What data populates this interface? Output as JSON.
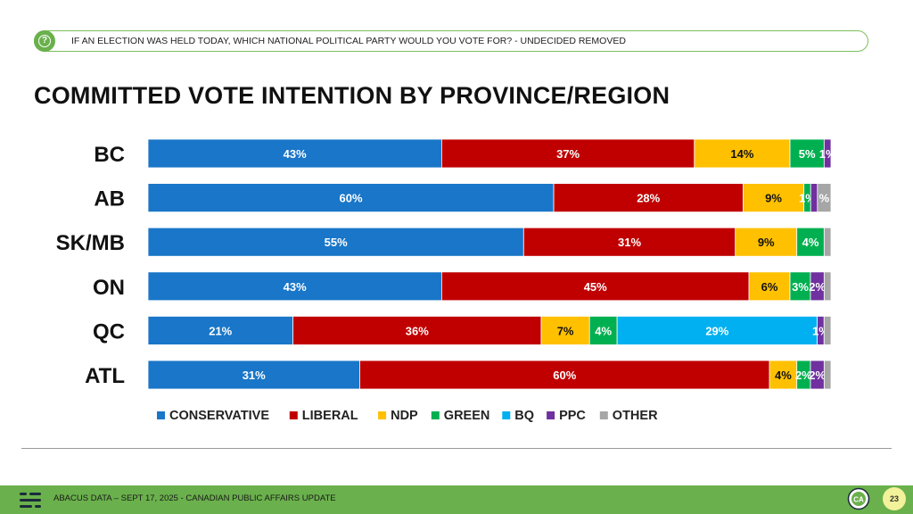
{
  "header": {
    "question": "IF AN ELECTION WAS HELD TODAY, WHICH NATIONAL POLITICAL PARTY WOULD YOU VOTE FOR? - UNDECIDED REMOVED"
  },
  "chart_data": {
    "type": "bar",
    "orientation": "horizontal",
    "stacked": true,
    "title": "COMMITTED VOTE INTENTION BY PROVINCE/REGION",
    "xlabel": "",
    "ylabel": "",
    "xlim": [
      0,
      100
    ],
    "categories": [
      "BC",
      "AB",
      "SK/MB",
      "ON",
      "QC",
      "ATL"
    ],
    "series": [
      {
        "name": "CONSERVATIVE",
        "color": "#1976c8",
        "values": [
          43,
          60,
          55,
          43,
          21,
          31
        ]
      },
      {
        "name": "LIBERAL",
        "color": "#c00000",
        "values": [
          37,
          28,
          31,
          45,
          36,
          60
        ]
      },
      {
        "name": "NDP",
        "color": "#ffc000",
        "values": [
          14,
          9,
          9,
          6,
          7,
          4
        ]
      },
      {
        "name": "GREEN",
        "color": "#00b050",
        "values": [
          5,
          1,
          4,
          3,
          4,
          2
        ]
      },
      {
        "name": "BQ",
        "color": "#00b0f0",
        "values": [
          0,
          0,
          0,
          0,
          29,
          0
        ]
      },
      {
        "name": "PPC",
        "color": "#7030a0",
        "values": [
          1,
          1,
          0,
          2,
          1,
          2
        ]
      },
      {
        "name": "OTHER",
        "color": "#a6a6a6",
        "values": [
          0,
          2,
          1,
          1,
          1,
          1
        ]
      }
    ],
    "data_labels": [
      [
        "43%",
        "37%",
        "14%",
        "5%",
        "",
        "1%",
        ""
      ],
      [
        "60%",
        "28%",
        "9%",
        "1%",
        "",
        "",
        "%"
      ],
      [
        "55%",
        "31%",
        "9%",
        "4%",
        "",
        "",
        ""
      ],
      [
        "43%",
        "45%",
        "6%",
        "3%",
        "",
        "2%",
        ""
      ],
      [
        "21%",
        "36%",
        "7%",
        "4%",
        "29%",
        "1%",
        ""
      ],
      [
        "31%",
        "60%",
        "4%",
        "2%",
        "",
        "2%",
        ""
      ]
    ],
    "legend_position": "bottom"
  },
  "footer": {
    "text": "ABACUS DATA – SEPT 17, 2025 - CANADIAN PUBLIC AFFAIRS UPDATE",
    "brand": "CA",
    "page_number": "23"
  }
}
